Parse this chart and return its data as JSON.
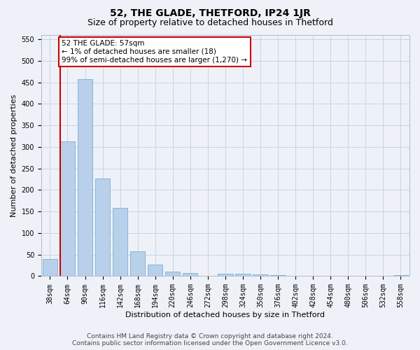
{
  "title": "52, THE GLADE, THETFORD, IP24 1JR",
  "subtitle": "Size of property relative to detached houses in Thetford",
  "xlabel": "Distribution of detached houses by size in Thetford",
  "ylabel": "Number of detached properties",
  "footer_line1": "Contains HM Land Registry data © Crown copyright and database right 2024.",
  "footer_line2": "Contains public sector information licensed under the Open Government Licence v3.0.",
  "categories": [
    "38sqm",
    "64sqm",
    "90sqm",
    "116sqm",
    "142sqm",
    "168sqm",
    "194sqm",
    "220sqm",
    "246sqm",
    "272sqm",
    "298sqm",
    "324sqm",
    "350sqm",
    "376sqm",
    "402sqm",
    "428sqm",
    "454sqm",
    "480sqm",
    "506sqm",
    "532sqm",
    "558sqm"
  ],
  "values": [
    40,
    313,
    457,
    227,
    158,
    57,
    26,
    11,
    8,
    0,
    5,
    5,
    4,
    3,
    0,
    0,
    0,
    0,
    0,
    0,
    3
  ],
  "bar_color": "#b8d0ea",
  "bar_edge_color": "#7aafd4",
  "annotation_text": "52 THE GLADE: 57sqm\n← 1% of detached houses are smaller (18)\n99% of semi-detached houses are larger (1,270) →",
  "annotation_box_color": "#ffffff",
  "annotation_box_edge_color": "#cc0000",
  "vline_color": "#cc0000",
  "ylim": [
    0,
    560
  ],
  "yticks": [
    0,
    50,
    100,
    150,
    200,
    250,
    300,
    350,
    400,
    450,
    500,
    550
  ],
  "grid_color": "#c8d4e8",
  "background_color": "#eef2f8",
  "title_fontsize": 10,
  "subtitle_fontsize": 9,
  "axis_label_fontsize": 8,
  "tick_fontsize": 7,
  "annotation_fontsize": 7.5,
  "footer_fontsize": 6.5
}
